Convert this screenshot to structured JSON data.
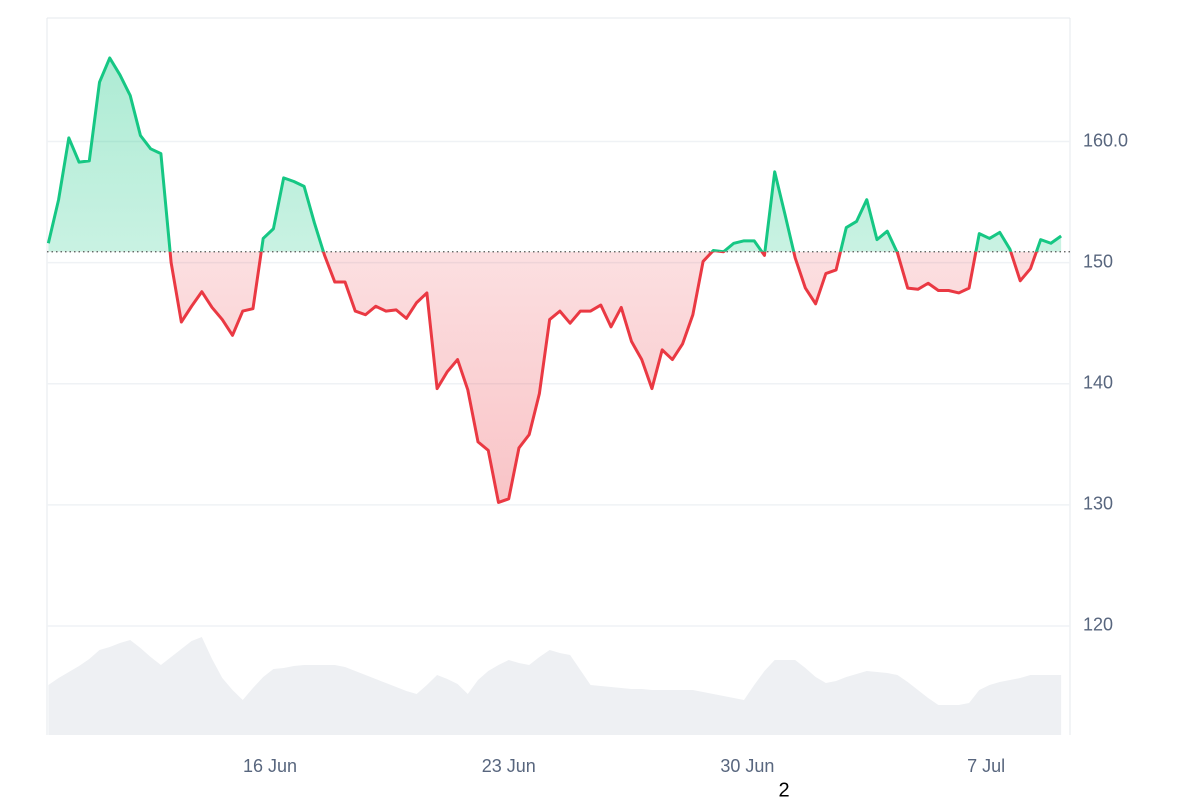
{
  "chart_data": {
    "type": "baseline-line",
    "x": [
      9.5,
      9.8,
      10.1,
      10.4,
      10.7,
      11,
      11.3,
      11.6,
      11.9,
      12.2,
      12.5,
      12.8,
      13.1,
      13.4,
      13.7,
      14,
      14.3,
      14.6,
      14.9,
      15.2,
      15.5,
      15.8,
      16.1,
      16.4,
      16.7,
      17,
      17.3,
      17.6,
      17.9,
      18.2,
      18.5,
      18.8,
      19.1,
      19.4,
      19.7,
      20,
      20.3,
      20.6,
      20.9,
      21.2,
      21.5,
      21.8,
      22.1,
      22.4,
      22.7,
      23,
      23.3,
      23.6,
      23.9,
      24.2,
      24.5,
      24.8,
      25.1,
      25.4,
      25.7,
      26,
      26.3,
      26.6,
      26.9,
      27.2,
      27.5,
      27.8,
      28.1,
      28.4,
      28.7,
      29,
      29.3,
      29.6,
      29.9,
      30.2,
      30.5,
      30.8,
      31.1,
      31.4,
      31.7,
      32,
      32.3,
      32.6,
      32.9,
      33.2,
      33.5,
      33.8,
      34.1,
      34.4,
      34.7,
      35,
      35.3,
      35.6,
      35.9,
      36.2,
      36.5,
      36.8,
      37.1,
      37.4,
      37.7,
      38,
      38.3,
      38.6,
      38.9,
      39.2
    ],
    "values": [
      151.6,
      155.2,
      160.3,
      158.3,
      158.4,
      164.9,
      166.9,
      165.5,
      163.8,
      160.5,
      159.4,
      159,
      150,
      145.1,
      146.4,
      147.6,
      146.3,
      145.3,
      144,
      146,
      146.2,
      152,
      152.8,
      157,
      156.7,
      156.3,
      153.3,
      150.6,
      148.4,
      148.4,
      146,
      145.7,
      146.4,
      146,
      146.1,
      145.4,
      146.7,
      147.5,
      139.6,
      141,
      142,
      139.5,
      135.2,
      134.5,
      130.2,
      130.5,
      134.7,
      135.8,
      139.2,
      145.3,
      146,
      145,
      146,
      146,
      146.5,
      144.7,
      146.3,
      143.5,
      142,
      139.6,
      142.8,
      142,
      143.3,
      145.7,
      150.1,
      151,
      150.9,
      151.6,
      151.8,
      151.8,
      150.6,
      157.5,
      154,
      150.4,
      147.9,
      146.6,
      149.1,
      149.4,
      152.9,
      153.4,
      155.2,
      151.9,
      152.6,
      150.8,
      147.9,
      147.8,
      148.3,
      147.7,
      147.7,
      147.5,
      147.9,
      152.4,
      152,
      152.5,
      151.1,
      148.5,
      149.5,
      151.9,
      151.6,
      152.2
    ],
    "volume": [
      50,
      57,
      63,
      69,
      76,
      85,
      88,
      92,
      95,
      87,
      78,
      70,
      78,
      86,
      94,
      98,
      76,
      57,
      45,
      35,
      47,
      58,
      66,
      67,
      69,
      70,
      70,
      70,
      70,
      68,
      64,
      60,
      56,
      52,
      48,
      44,
      41,
      50,
      60,
      56,
      51,
      41,
      55,
      64,
      70,
      75,
      72,
      70,
      78,
      85,
      82,
      80,
      65,
      50,
      49,
      48,
      47,
      46,
      46,
      45,
      45,
      45,
      45,
      45,
      43,
      41,
      39,
      37,
      35,
      50,
      64,
      75,
      75,
      75,
      67,
      58,
      52,
      54,
      58,
      61,
      64,
      63,
      62,
      60,
      53,
      45,
      37,
      30,
      30,
      30,
      32,
      45,
      50,
      53,
      55,
      57,
      60,
      60,
      60,
      60
    ],
    "volume_lim": [
      0,
      100
    ],
    "baseline": 150.9,
    "up_color": "#16c784",
    "down_color": "#ea3943",
    "volume_color": "#eef0f3",
    "xlim": [
      9.46,
      39.46
    ],
    "xticks": [
      {
        "value": 16,
        "label": "16 Jun"
      },
      {
        "value": 23,
        "label": "23 Jun"
      },
      {
        "value": 30,
        "label": "30 Jun"
      },
      {
        "value": 37,
        "label": "7 Jul"
      }
    ],
    "ylim": [
      111,
      170.2
    ],
    "yticks": [
      120,
      130,
      140,
      150,
      {
        "value": 160,
        "label": "160.0"
      }
    ],
    "grid": true
  },
  "page_number": "2"
}
